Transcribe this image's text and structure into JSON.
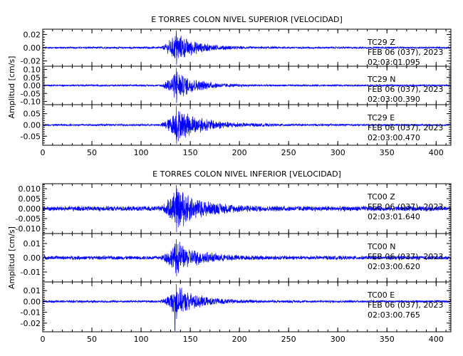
{
  "chart_data": [
    {
      "type": "line",
      "title": "E TORRES COLON NIVEL SUPERIOR [VELOCIDAD]",
      "ylabel": "Amplitud [cm/s]",
      "xlim": [
        0,
        415
      ],
      "xticks": [
        0,
        50,
        100,
        150,
        200,
        250,
        300,
        350,
        400
      ],
      "trace_color": "#0000ff",
      "panels": [
        {
          "name": "TC29 Z",
          "ylim": [
            -0.028,
            0.028
          ],
          "yticks": [
            {
              "v": 0.02,
              "label": "0.02"
            },
            {
              "v": 0.0,
              "label": "0.00"
            },
            {
              "v": -0.02,
              "label": "-0.02"
            }
          ],
          "annotation": [
            "TC29   Z",
            "FEB 06 (037), 2023",
            "02:03:01.095"
          ],
          "signal": {
            "noise": 0.0016,
            "onset": 120,
            "peak_t": 136,
            "peak_amp": 0.026,
            "decay": 20
          }
        },
        {
          "name": "TC29 N",
          "ylim": [
            -0.12,
            0.12
          ],
          "yticks": [
            {
              "v": 0.1,
              "label": "0.10"
            },
            {
              "v": 0.05,
              "label": "0.05"
            },
            {
              "v": 0.0,
              "label": "0.00"
            },
            {
              "v": -0.05,
              "label": "-0.05"
            },
            {
              "v": -0.1,
              "label": "-0.10"
            }
          ],
          "annotation": [
            "TC29   N",
            "FEB 06 (037), 2023",
            "02:03:00.390"
          ],
          "signal": {
            "noise": 0.006,
            "onset": 120,
            "peak_t": 136,
            "peak_amp": 0.11,
            "decay": 20
          }
        },
        {
          "name": "TC29 E",
          "ylim": [
            -0.09,
            0.09
          ],
          "yticks": [
            {
              "v": 0.05,
              "label": "0.05"
            },
            {
              "v": 0.0,
              "label": "0.00"
            },
            {
              "v": -0.05,
              "label": "-0.05"
            }
          ],
          "annotation": [
            "TC29   E",
            "FEB 06 (037), 2023",
            "02:03:00.470"
          ],
          "signal": {
            "noise": 0.005,
            "onset": 120,
            "peak_t": 136,
            "peak_amp": 0.085,
            "decay": 26
          }
        }
      ]
    },
    {
      "type": "line",
      "title": "E TORRES COLON NIVEL INFERIOR [VELOCIDAD]",
      "ylabel": "Amplitud [cm/s]",
      "xlim": [
        0,
        415
      ],
      "xticks": [
        0,
        50,
        100,
        150,
        200,
        250,
        300,
        350,
        400
      ],
      "trace_color": "#0000ff",
      "panels": [
        {
          "name": "TC00 Z",
          "ylim": [
            -0.0125,
            0.0125
          ],
          "yticks": [
            {
              "v": 0.01,
              "label": "0.010"
            },
            {
              "v": 0.005,
              "label": "0.005"
            },
            {
              "v": 0.0,
              "label": "0.000"
            },
            {
              "v": -0.005,
              "label": "-0.005"
            },
            {
              "v": -0.01,
              "label": "-0.010"
            }
          ],
          "annotation": [
            "TC00   Z",
            "FEB 06 (037), 2023",
            "02:03:01.640"
          ],
          "signal": {
            "noise": 0.0014,
            "onset": 120,
            "peak_t": 136,
            "peak_amp": 0.0118,
            "decay": 24
          }
        },
        {
          "name": "TC00 N",
          "ylim": [
            -0.017,
            0.017
          ],
          "yticks": [
            {
              "v": 0.01,
              "label": "0.01"
            },
            {
              "v": 0.0,
              "label": "0.00"
            },
            {
              "v": -0.01,
              "label": "-0.01"
            }
          ],
          "annotation": [
            "TC00   N",
            "FEB 06 (037), 2023",
            "02:03:00.620"
          ],
          "signal": {
            "noise": 0.0015,
            "onset": 120,
            "peak_t": 136,
            "peak_amp": 0.013,
            "decay": 22
          }
        },
        {
          "name": "TC00 E",
          "ylim": [
            -0.028,
            0.018
          ],
          "yticks": [
            {
              "v": 0.01,
              "label": "0.01"
            },
            {
              "v": 0.0,
              "label": "0.00"
            },
            {
              "v": -0.01,
              "label": "-0.01"
            },
            {
              "v": -0.02,
              "label": "-0.02"
            }
          ],
          "annotation": [
            "TC00   E",
            "FEB 06 (037), 2023",
            "02:03:00.765"
          ],
          "signal": {
            "noise": 0.0012,
            "onset": 120,
            "peak_t": 136,
            "peak_amp": 0.016,
            "neg_peak": -0.027,
            "decay": 22
          }
        }
      ]
    }
  ]
}
